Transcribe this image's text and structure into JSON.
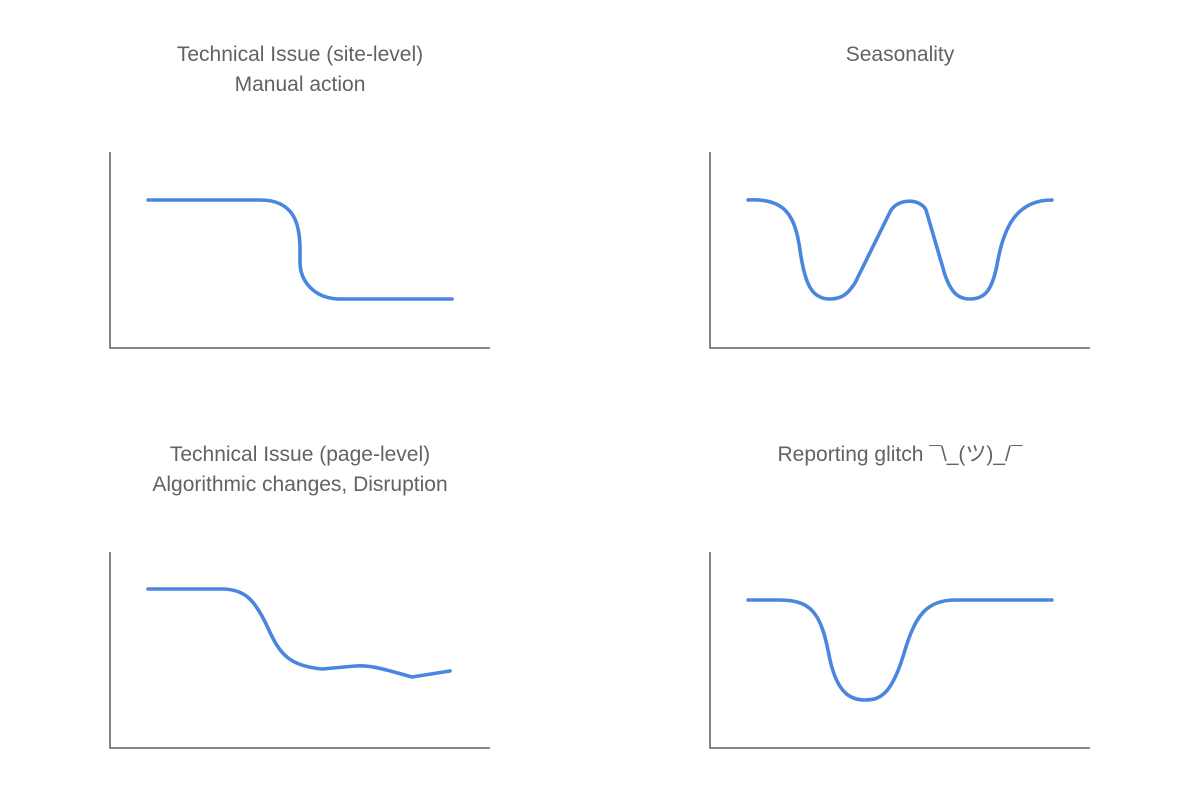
{
  "chart_data": [
    {
      "type": "line",
      "title_lines": [
        "Technical Issue (site-level)",
        "Manual action"
      ],
      "shape": "step-drop",
      "color": "#4a86de",
      "axes": {
        "x_ticks": false,
        "y_ticks": false,
        "labels": false
      }
    },
    {
      "type": "line",
      "title_lines": [
        "Seasonality",
        ""
      ],
      "shape": "double-dip",
      "color": "#4a86de",
      "axes": {
        "x_ticks": false,
        "y_ticks": false,
        "labels": false
      }
    },
    {
      "type": "line",
      "title_lines": [
        "Technical Issue (page-level)",
        "Algorithmic changes, Disruption"
      ],
      "shape": "gradual-decline",
      "color": "#4a86de",
      "axes": {
        "x_ticks": false,
        "y_ticks": false,
        "labels": false
      }
    },
    {
      "type": "line",
      "title_lines": [
        "Reporting glitch ¯\\_(ツ)_/¯",
        ""
      ],
      "shape": "single-dip",
      "color": "#4a86de",
      "axes": {
        "x_ticks": false,
        "y_ticks": false,
        "labels": false
      }
    }
  ]
}
